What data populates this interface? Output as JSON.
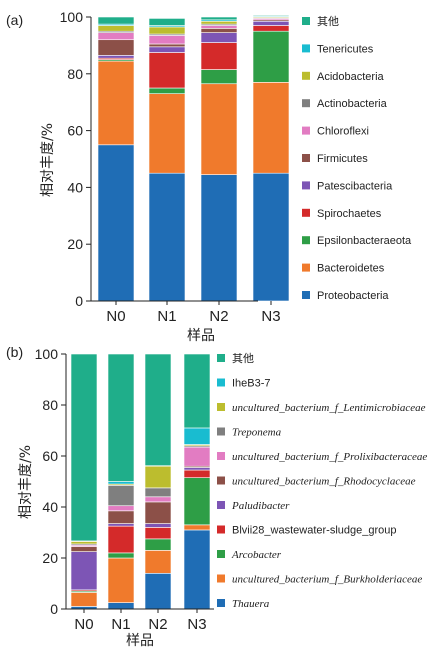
{
  "chart_data": [
    {
      "type": "bar",
      "stacked": true,
      "panel_label": "(a)",
      "xlabel": "样品",
      "ylabel": "相对丰度/%",
      "ylim": [
        0,
        100
      ],
      "yticks": [
        0,
        20,
        40,
        60,
        80,
        100
      ],
      "categories": [
        "N0",
        "N1",
        "N2",
        "N3"
      ],
      "series": [
        {
          "name": "Proteobacteria",
          "color": "#1f6db5",
          "values": [
            55,
            45,
            44.5,
            45
          ]
        },
        {
          "name": "Bacteroidetes",
          "color": "#f07a2c",
          "values": [
            29.5,
            28,
            32,
            32
          ]
        },
        {
          "name": "Epsilonbacteraeota",
          "color": "#2e9e46",
          "values": [
            0.5,
            2,
            5,
            18
          ]
        },
        {
          "name": "Spirochaetes",
          "color": "#d42a2a",
          "values": [
            0.5,
            12.5,
            9.5,
            2
          ]
        },
        {
          "name": "Patescibacteria",
          "color": "#7d55b5",
          "values": [
            1,
            2,
            3.5,
            1.5
          ]
        },
        {
          "name": "Firmicutes",
          "color": "#8c5048",
          "values": [
            5.5,
            1,
            1.5,
            0.5
          ]
        },
        {
          "name": "Chloroflexi",
          "color": "#e27cc2",
          "values": [
            2.5,
            3,
            1,
            0.5
          ]
        },
        {
          "name": "Actinobacteria",
          "color": "#7f7f7f",
          "values": [
            0.5,
            0.5,
            0.5,
            0.3
          ]
        },
        {
          "name": "Acidobacteria",
          "color": "#bcbd2e",
          "values": [
            2,
            2.5,
            1,
            0.3
          ]
        },
        {
          "name": "Tenericutes",
          "color": "#19bcd0",
          "values": [
            0.5,
            0.5,
            0.5,
            0.3
          ]
        },
        {
          "name": "其他",
          "color": "#1fae8a",
          "values": [
            2.5,
            2.5,
            1,
            0.3
          ]
        }
      ]
    },
    {
      "type": "bar",
      "stacked": true,
      "panel_label": "(b)",
      "xlabel": "样品",
      "ylabel": "相对丰度/%",
      "ylim": [
        0,
        100
      ],
      "yticks": [
        0,
        20,
        40,
        60,
        80,
        100
      ],
      "categories": [
        "N0",
        "N1",
        "N2",
        "N3"
      ],
      "series": [
        {
          "name": "Thauera",
          "italic": true,
          "color": "#1f6db5",
          "values": [
            1,
            2.5,
            14,
            31
          ]
        },
        {
          "name": "uncultured_bacterium_f_Burkholderiaceae",
          "italic": true,
          "color": "#f07a2c",
          "values": [
            5.5,
            17.5,
            9,
            2
          ]
        },
        {
          "name": "Arcobacter",
          "italic": true,
          "color": "#2e9e46",
          "values": [
            0.5,
            2,
            4.5,
            18.5
          ]
        },
        {
          "name": "Blvii28_wastewater-sludge_group",
          "color": "#d42a2a",
          "values": [
            0.5,
            10.5,
            4.5,
            3
          ]
        },
        {
          "name": "Paludibacter",
          "italic": true,
          "color": "#7d55b5",
          "values": [
            15,
            1,
            1.5,
            1
          ]
        },
        {
          "name": "uncultured_bacterium_f_Rhodocyclaceae",
          "italic": true,
          "color": "#8c5048",
          "values": [
            2,
            5,
            8.5,
            0.5
          ]
        },
        {
          "name": "uncultured_bacterium_f_Prolixibacteraceae",
          "italic": true,
          "color": "#e27cc2",
          "values": [
            0.5,
            2,
            2,
            7.5
          ]
        },
        {
          "name": "Treponema",
          "italic": true,
          "color": "#7f7f7f",
          "values": [
            0.5,
            8,
            3.5,
            0.5
          ]
        },
        {
          "name": "uncultured_bacterium_f_Lentimicrobiaceae",
          "italic": true,
          "color": "#bcbd2e",
          "values": [
            1,
            0.5,
            8.5,
            0.5
          ]
        },
        {
          "name": "IheB3-7",
          "color": "#19bcd0",
          "values": [
            0.2,
            1,
            0.2,
            6.5
          ]
        },
        {
          "name": "其他",
          "color": "#1fae8a",
          "values": [
            73.3,
            50,
            43.8,
            29
          ]
        }
      ]
    }
  ]
}
